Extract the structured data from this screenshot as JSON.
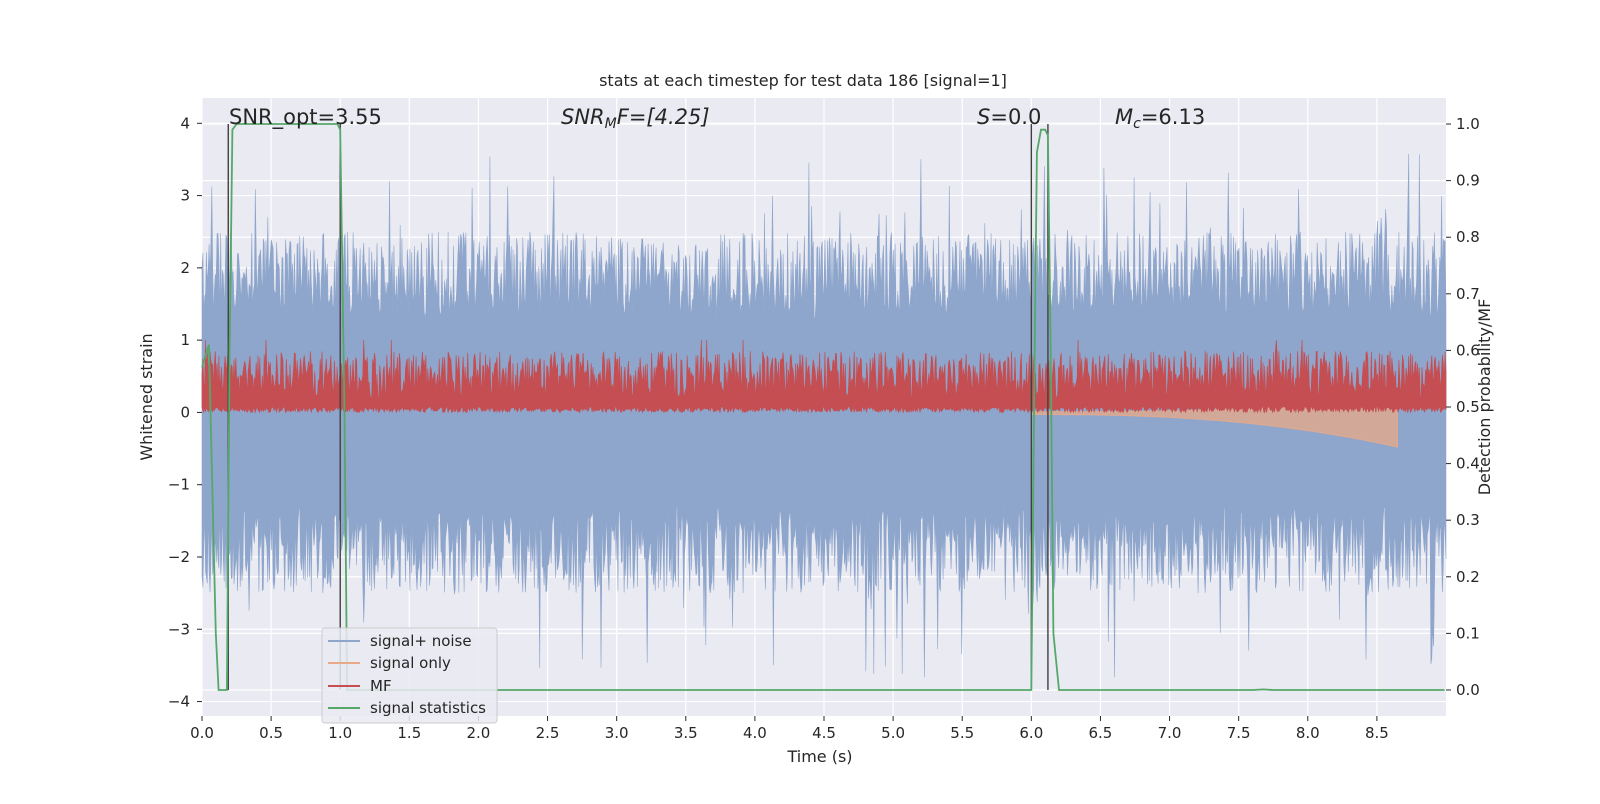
{
  "chart_data": {
    "type": "line",
    "title": "stats at each timestep for test data 186 [signal=1]",
    "xlabel": "Time (s)",
    "ylabel": "Whitened strain",
    "y2label": "Detection probability/MF",
    "xlim": [
      0.0,
      9.0
    ],
    "ylim": [
      -4.2,
      4.35
    ],
    "y2lim": [
      -0.046,
      1.046
    ],
    "xticks": [
      "0.0",
      "0.5",
      "1.0",
      "1.5",
      "2.0",
      "2.5",
      "3.0",
      "3.5",
      "4.0",
      "4.5",
      "5.0",
      "5.5",
      "6.0",
      "6.5",
      "7.0",
      "7.5",
      "8.0",
      "8.5"
    ],
    "xtick_values": [
      0.0,
      0.5,
      1.0,
      1.5,
      2.0,
      2.5,
      3.0,
      3.5,
      4.0,
      4.5,
      5.0,
      5.5,
      6.0,
      6.5,
      7.0,
      7.5,
      8.0,
      8.5
    ],
    "yticks": [
      "4",
      "3",
      "2",
      "1",
      "0",
      "−1",
      "−2",
      "−3",
      "−4"
    ],
    "ytick_values": [
      4,
      3,
      2,
      1,
      0,
      -1,
      -2,
      -3,
      -4
    ],
    "y2ticks": [
      "1.0",
      "0.9",
      "0.8",
      "0.7",
      "0.6",
      "0.5",
      "0.4",
      "0.3",
      "0.2",
      "0.1",
      "0.0"
    ],
    "y2tick_values": [
      1.0,
      0.9,
      0.8,
      0.7,
      0.6,
      0.5,
      0.4,
      0.3,
      0.2,
      0.1,
      0.0
    ],
    "grid": true,
    "legend_position": "lower-left",
    "annotations": {
      "snr_opt": "SNR_opt=3.55",
      "snr_mf_base": "SNR",
      "snr_mf_sub": "M",
      "snr_mf_rest": "F=[4.25]",
      "s_label": "S",
      "s_value": "=0.0",
      "mc_base": "M",
      "mc_sub": "c",
      "mc_value": "=6.13"
    },
    "vertical_lines": {
      "x": [
        0.19,
        1.0,
        6.0,
        6.12
      ],
      "color": "#404040"
    },
    "series": [
      {
        "name": "signal+ noise",
        "color": "#8fa6cc",
        "style": "noise band",
        "upper_envelope_typical": [
          1.3,
          2.5
        ],
        "upper_peak_max": 3.6,
        "lower_envelope_typical": [
          -1.3,
          -2.5
        ],
        "lower_peak_min": -3.7
      },
      {
        "name": "signal only",
        "color": "#e8a987",
        "style": "chirp",
        "x_start": 6.0,
        "x_end": 8.65,
        "min_value": -0.45
      },
      {
        "name": "MF",
        "color": "#c44e52",
        "style": "positive noisy band",
        "range": [
          0.0,
          0.85
        ],
        "peak_max": 1.0
      },
      {
        "name": "signal statistics",
        "color": "#55a868",
        "axis": "right",
        "x": [
          0.0,
          0.05,
          0.1,
          0.12,
          0.17,
          0.18,
          0.2,
          0.22,
          0.25,
          0.98,
          1.0,
          1.03,
          1.05,
          1.1,
          5.99,
          6.0,
          6.02,
          6.04,
          6.07,
          6.1,
          6.12,
          6.14,
          6.16,
          6.2,
          7.6,
          7.68,
          7.75,
          8.99
        ],
        "y": [
          0.57,
          0.61,
          0.1,
          0.0,
          0.0,
          0.0,
          0.6,
          0.99,
          1.0,
          1.0,
          0.99,
          0.5,
          0.0,
          0.0,
          0.0,
          0.0,
          0.5,
          0.95,
          0.99,
          0.99,
          0.98,
          0.6,
          0.1,
          0.0,
          0.0,
          0.001,
          0.0,
          0.0
        ]
      }
    ]
  }
}
